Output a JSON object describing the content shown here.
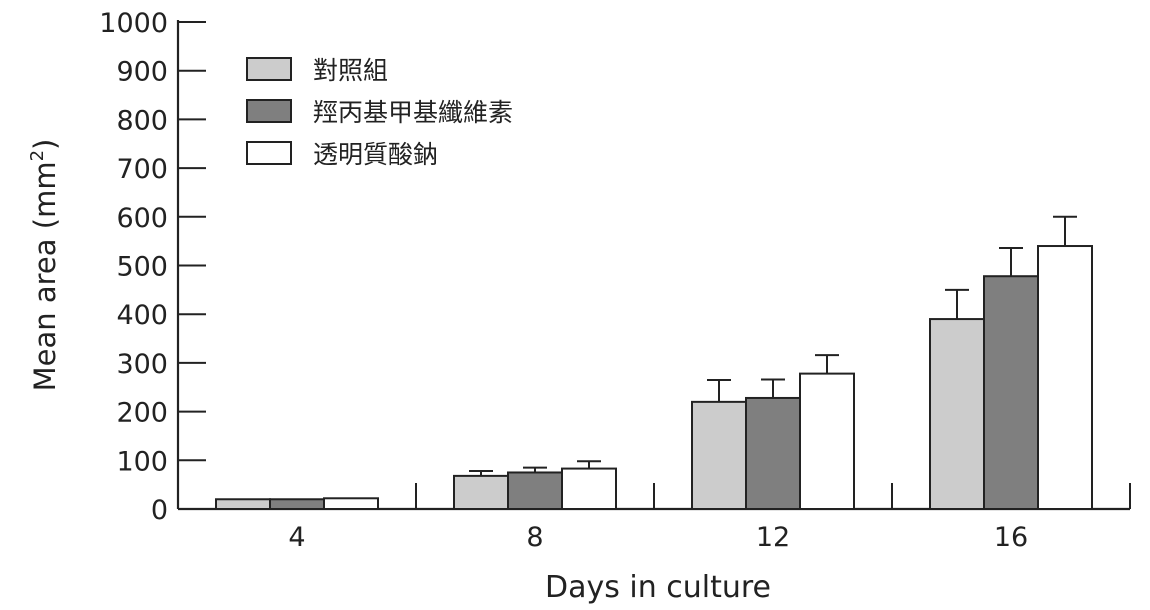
{
  "chart_data": {
    "type": "bar",
    "categories": [
      "4",
      "8",
      "12",
      "16"
    ],
    "series": [
      {
        "name": "對照組",
        "color": "#cccccc",
        "values": [
          20,
          68,
          220,
          390
        ],
        "errors": [
          0,
          10,
          45,
          60
        ]
      },
      {
        "name": "羥丙基甲基纖維素",
        "color": "#7f7f7f",
        "values": [
          20,
          75,
          228,
          478
        ],
        "errors": [
          0,
          10,
          38,
          58
        ]
      },
      {
        "name": "透明質酸鈉",
        "color": "#ffffff",
        "values": [
          22,
          83,
          278,
          540
        ],
        "errors": [
          0,
          15,
          38,
          60
        ]
      }
    ],
    "y_ticks": [
      "0",
      "100",
      "200",
      "300",
      "400",
      "500",
      "600",
      "700",
      "800",
      "900",
      "1000"
    ],
    "ylim": [
      0,
      1000
    ],
    "xlabel": "Days in culture",
    "ylabel": "Mean area (mm",
    "ylabel_superscript": "2",
    "ylabel_suffix": ")",
    "legend_position": "top-left",
    "grid": false
  }
}
